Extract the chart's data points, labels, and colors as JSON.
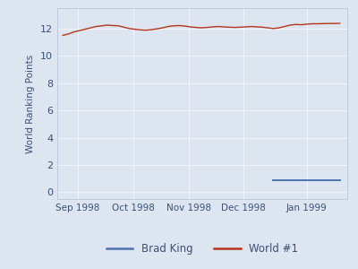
{
  "world1_x": [
    0,
    3,
    6,
    9,
    12,
    15,
    18,
    21,
    24,
    27,
    30,
    33,
    36,
    39,
    42,
    45,
    48,
    51,
    54,
    57,
    60,
    63,
    66,
    69,
    72,
    75,
    78,
    81,
    84,
    87,
    90,
    93,
    96,
    99,
    102,
    105,
    108,
    111,
    114,
    117,
    120,
    123,
    126,
    129,
    132,
    135,
    138,
    141,
    144,
    147,
    150
  ],
  "world1_y": [
    11.5,
    11.6,
    11.75,
    11.85,
    11.95,
    12.05,
    12.15,
    12.2,
    12.25,
    12.22,
    12.2,
    12.1,
    12.0,
    11.95,
    11.9,
    11.88,
    11.92,
    11.98,
    12.05,
    12.15,
    12.2,
    12.22,
    12.18,
    12.12,
    12.08,
    12.05,
    12.08,
    12.12,
    12.15,
    12.12,
    12.1,
    12.08,
    12.1,
    12.12,
    12.15,
    12.12,
    12.1,
    12.05,
    12.0,
    12.05,
    12.15,
    12.25,
    12.3,
    12.28,
    12.32,
    12.35,
    12.35,
    12.36,
    12.37,
    12.37,
    12.38
  ],
  "brad_x": [
    114,
    120,
    126,
    132,
    138,
    144,
    150
  ],
  "brad_y": [
    0.85,
    0.85,
    0.85,
    0.85,
    0.85,
    0.85,
    0.85
  ],
  "world1_color": "#b5351a",
  "brad_color": "#4c72b0",
  "background_color": "#dde5f0",
  "axes_background": "#dde5f0",
  "grid_color": "#f0f4f9",
  "ylabel": "World Ranking Points",
  "legend_brad": "Brad King",
  "legend_world": "World #1",
  "xtick_positions": [
    8,
    38,
    68,
    98,
    132
  ],
  "xtick_labels": [
    "Sep 1998",
    "Oct 1998",
    "Nov 1998",
    "Dec 1998",
    "Jan 1999"
  ],
  "ylim": [
    -0.5,
    13.5
  ],
  "xlim": [
    -3,
    154
  ],
  "yticks": [
    0,
    2,
    4,
    6,
    8,
    10,
    12
  ]
}
